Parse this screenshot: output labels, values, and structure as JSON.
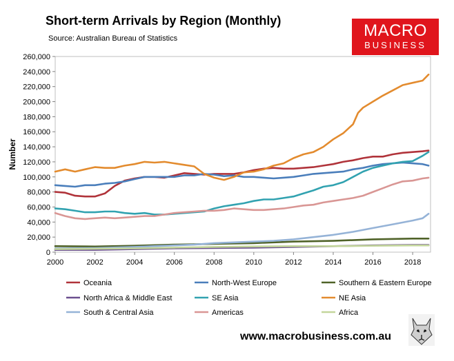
{
  "header": {
    "title": "Short-term Arrivals by Region (Monthly)",
    "source": "Source: Australian Bureau of Statistics",
    "logo_line1": "MACRO",
    "logo_line2": "BUSINESS"
  },
  "footer": {
    "website": "www.macrobusiness.com.au"
  },
  "chart_data": {
    "type": "line",
    "title": "Short-term Arrivals by Region (Monthly)",
    "ylabel": "Number",
    "xlabel": "",
    "xlim": [
      2000,
      2018.9
    ],
    "ylim": [
      0,
      260000
    ],
    "yticks": [
      0,
      20000,
      40000,
      60000,
      80000,
      100000,
      120000,
      140000,
      160000,
      180000,
      200000,
      220000,
      240000,
      260000
    ],
    "ytick_labels": [
      "0",
      "20,000",
      "40,000",
      "60,000",
      "80,000",
      "100,000",
      "120,000",
      "140,000",
      "160,000",
      "180,000",
      "200,000",
      "220,000",
      "240,000",
      "260,000"
    ],
    "xticks": [
      2000,
      2002,
      2004,
      2006,
      2008,
      2010,
      2012,
      2014,
      2016,
      2018
    ],
    "xtick_labels": [
      "2000",
      "2002",
      "2004",
      "2006",
      "2008",
      "2010",
      "2012",
      "2014",
      "2016",
      "2018"
    ],
    "grid": false,
    "legend_position": "bottom",
    "series": [
      {
        "name": "Oceania",
        "color": "#b0333a",
        "x": [
          2000,
          2000.5,
          2001,
          2001.5,
          2002,
          2002.5,
          2003,
          2003.5,
          2004,
          2004.5,
          2005,
          2005.5,
          2006,
          2006.5,
          2007,
          2007.5,
          2008,
          2008.5,
          2009,
          2009.5,
          2010,
          2010.5,
          2011,
          2011.5,
          2012,
          2012.5,
          2013,
          2013.5,
          2014,
          2014.5,
          2015,
          2015.5,
          2016,
          2016.5,
          2017,
          2017.5,
          2018,
          2018.5,
          2018.8
        ],
        "values": [
          80000,
          79000,
          75000,
          74000,
          74000,
          78000,
          88000,
          95000,
          98000,
          100000,
          100000,
          99000,
          102000,
          105000,
          104000,
          103000,
          104000,
          104000,
          104000,
          106000,
          109000,
          111000,
          112000,
          111000,
          111000,
          112000,
          113000,
          115000,
          117000,
          120000,
          122000,
          125000,
          127000,
          127000,
          130000,
          132000,
          133000,
          134000,
          135000
        ]
      },
      {
        "name": "North-West Europe",
        "color": "#4a7ebb",
        "x": [
          2000,
          2000.5,
          2001,
          2001.5,
          2002,
          2002.5,
          2003,
          2003.5,
          2004,
          2004.5,
          2005,
          2005.5,
          2006,
          2006.5,
          2007,
          2007.5,
          2008,
          2008.5,
          2009,
          2009.5,
          2010,
          2010.5,
          2011,
          2011.5,
          2012,
          2012.5,
          2013,
          2013.5,
          2014,
          2014.5,
          2015,
          2015.5,
          2016,
          2016.5,
          2017,
          2017.5,
          2018,
          2018.5,
          2018.8
        ],
        "values": [
          89000,
          88000,
          87000,
          89000,
          89000,
          91000,
          92000,
          94000,
          97000,
          100000,
          100000,
          100000,
          100000,
          102000,
          102000,
          104000,
          103000,
          101000,
          102000,
          100000,
          100000,
          99000,
          98000,
          99000,
          100000,
          102000,
          104000,
          105000,
          106000,
          107000,
          110000,
          112000,
          115000,
          117000,
          118000,
          119000,
          118000,
          117000,
          115000
        ]
      },
      {
        "name": "Southern & Eastern Europe",
        "color": "#4f6228",
        "x": [
          2000,
          2002,
          2004,
          2006,
          2008,
          2010,
          2012,
          2014,
          2016,
          2018,
          2018.8
        ],
        "values": [
          8000,
          7500,
          8500,
          10000,
          11000,
          12000,
          14000,
          15000,
          17000,
          18000,
          18000
        ]
      },
      {
        "name": "North Africa & Middle East",
        "color": "#6a4e8e",
        "x": [
          2000,
          2002,
          2004,
          2006,
          2008,
          2010,
          2012,
          2014,
          2016,
          2018,
          2018.8
        ],
        "values": [
          3000,
          3000,
          4000,
          5000,
          5500,
          6000,
          7000,
          8000,
          9000,
          9500,
          9500
        ]
      },
      {
        "name": "SE Asia",
        "color": "#31a2b0",
        "x": [
          2000,
          2000.5,
          2001,
          2001.5,
          2002,
          2002.5,
          2003,
          2003.5,
          2004,
          2004.5,
          2005,
          2005.5,
          2006,
          2006.5,
          2007,
          2007.5,
          2008,
          2008.5,
          2009,
          2009.5,
          2010,
          2010.5,
          2011,
          2011.5,
          2012,
          2012.5,
          2013,
          2013.5,
          2014,
          2014.5,
          2015,
          2015.5,
          2016,
          2016.5,
          2017,
          2017.5,
          2018,
          2018.5,
          2018.8
        ],
        "values": [
          58000,
          57000,
          55000,
          53000,
          53000,
          54000,
          54000,
          52000,
          51000,
          52000,
          50000,
          50000,
          51000,
          52000,
          53000,
          54000,
          58000,
          61000,
          63000,
          65000,
          68000,
          70000,
          70000,
          72000,
          74000,
          78000,
          82000,
          87000,
          89000,
          93000,
          100000,
          107000,
          112000,
          115000,
          118000,
          120000,
          121000,
          128000,
          133000
        ]
      },
      {
        "name": "NE Asia",
        "color": "#e38b2e",
        "x": [
          2000,
          2000.5,
          2001,
          2001.5,
          2002,
          2002.5,
          2003,
          2003.5,
          2004,
          2004.5,
          2005,
          2005.5,
          2006,
          2006.5,
          2007,
          2007.5,
          2008,
          2008.5,
          2009,
          2009.5,
          2010,
          2010.5,
          2011,
          2011.5,
          2012,
          2012.5,
          2013,
          2013.5,
          2014,
          2014.5,
          2015,
          2015.25,
          2015.5,
          2016,
          2016.5,
          2017,
          2017.5,
          2018,
          2018.5,
          2018.8
        ],
        "values": [
          107000,
          110000,
          107000,
          110000,
          113000,
          112000,
          112000,
          115000,
          117000,
          120000,
          119000,
          120000,
          118000,
          116000,
          114000,
          104000,
          99000,
          96000,
          100000,
          106000,
          107000,
          110000,
          115000,
          118000,
          125000,
          130000,
          133000,
          140000,
          150000,
          158000,
          170000,
          185000,
          192000,
          200000,
          208000,
          215000,
          222000,
          225000,
          228000,
          236000
        ]
      },
      {
        "name": "South & Central Asia",
        "color": "#95b3d7",
        "x": [
          2000,
          2002,
          2004,
          2006,
          2007,
          2008,
          2009,
          2010,
          2011,
          2012,
          2013,
          2014,
          2015,
          2016,
          2017,
          2018,
          2018.5,
          2018.8
        ],
        "values": [
          5000,
          5500,
          7000,
          9000,
          10000,
          12000,
          13000,
          14000,
          15000,
          17000,
          20000,
          23000,
          27000,
          32000,
          37000,
          42000,
          45000,
          51000
        ]
      },
      {
        "name": "Americas",
        "color": "#d99694",
        "x": [
          2000,
          2000.5,
          2001,
          2001.5,
          2002,
          2002.5,
          2003,
          2003.5,
          2004,
          2004.5,
          2005,
          2005.5,
          2006,
          2006.5,
          2007,
          2007.5,
          2008,
          2008.5,
          2009,
          2009.5,
          2010,
          2010.5,
          2011,
          2011.5,
          2012,
          2012.5,
          2013,
          2013.5,
          2014,
          2014.5,
          2015,
          2015.5,
          2016,
          2016.5,
          2017,
          2017.5,
          2018,
          2018.5,
          2018.8
        ],
        "values": [
          52000,
          48000,
          45000,
          44000,
          45000,
          46000,
          45000,
          46000,
          47000,
          48000,
          48000,
          50000,
          52000,
          53000,
          54000,
          55000,
          55000,
          56000,
          58000,
          57000,
          56000,
          56000,
          57000,
          58000,
          60000,
          62000,
          63000,
          66000,
          68000,
          70000,
          72000,
          75000,
          80000,
          85000,
          90000,
          94000,
          95000,
          98000,
          99000
        ]
      },
      {
        "name": "Africa",
        "color": "#c3d69b",
        "x": [
          2000,
          2002,
          2004,
          2006,
          2008,
          2010,
          2012,
          2014,
          2016,
          2018,
          2018.8
        ],
        "values": [
          4000,
          4500,
          5000,
          6000,
          7000,
          7500,
          8000,
          8000,
          8500,
          9000,
          9000
        ]
      }
    ]
  }
}
